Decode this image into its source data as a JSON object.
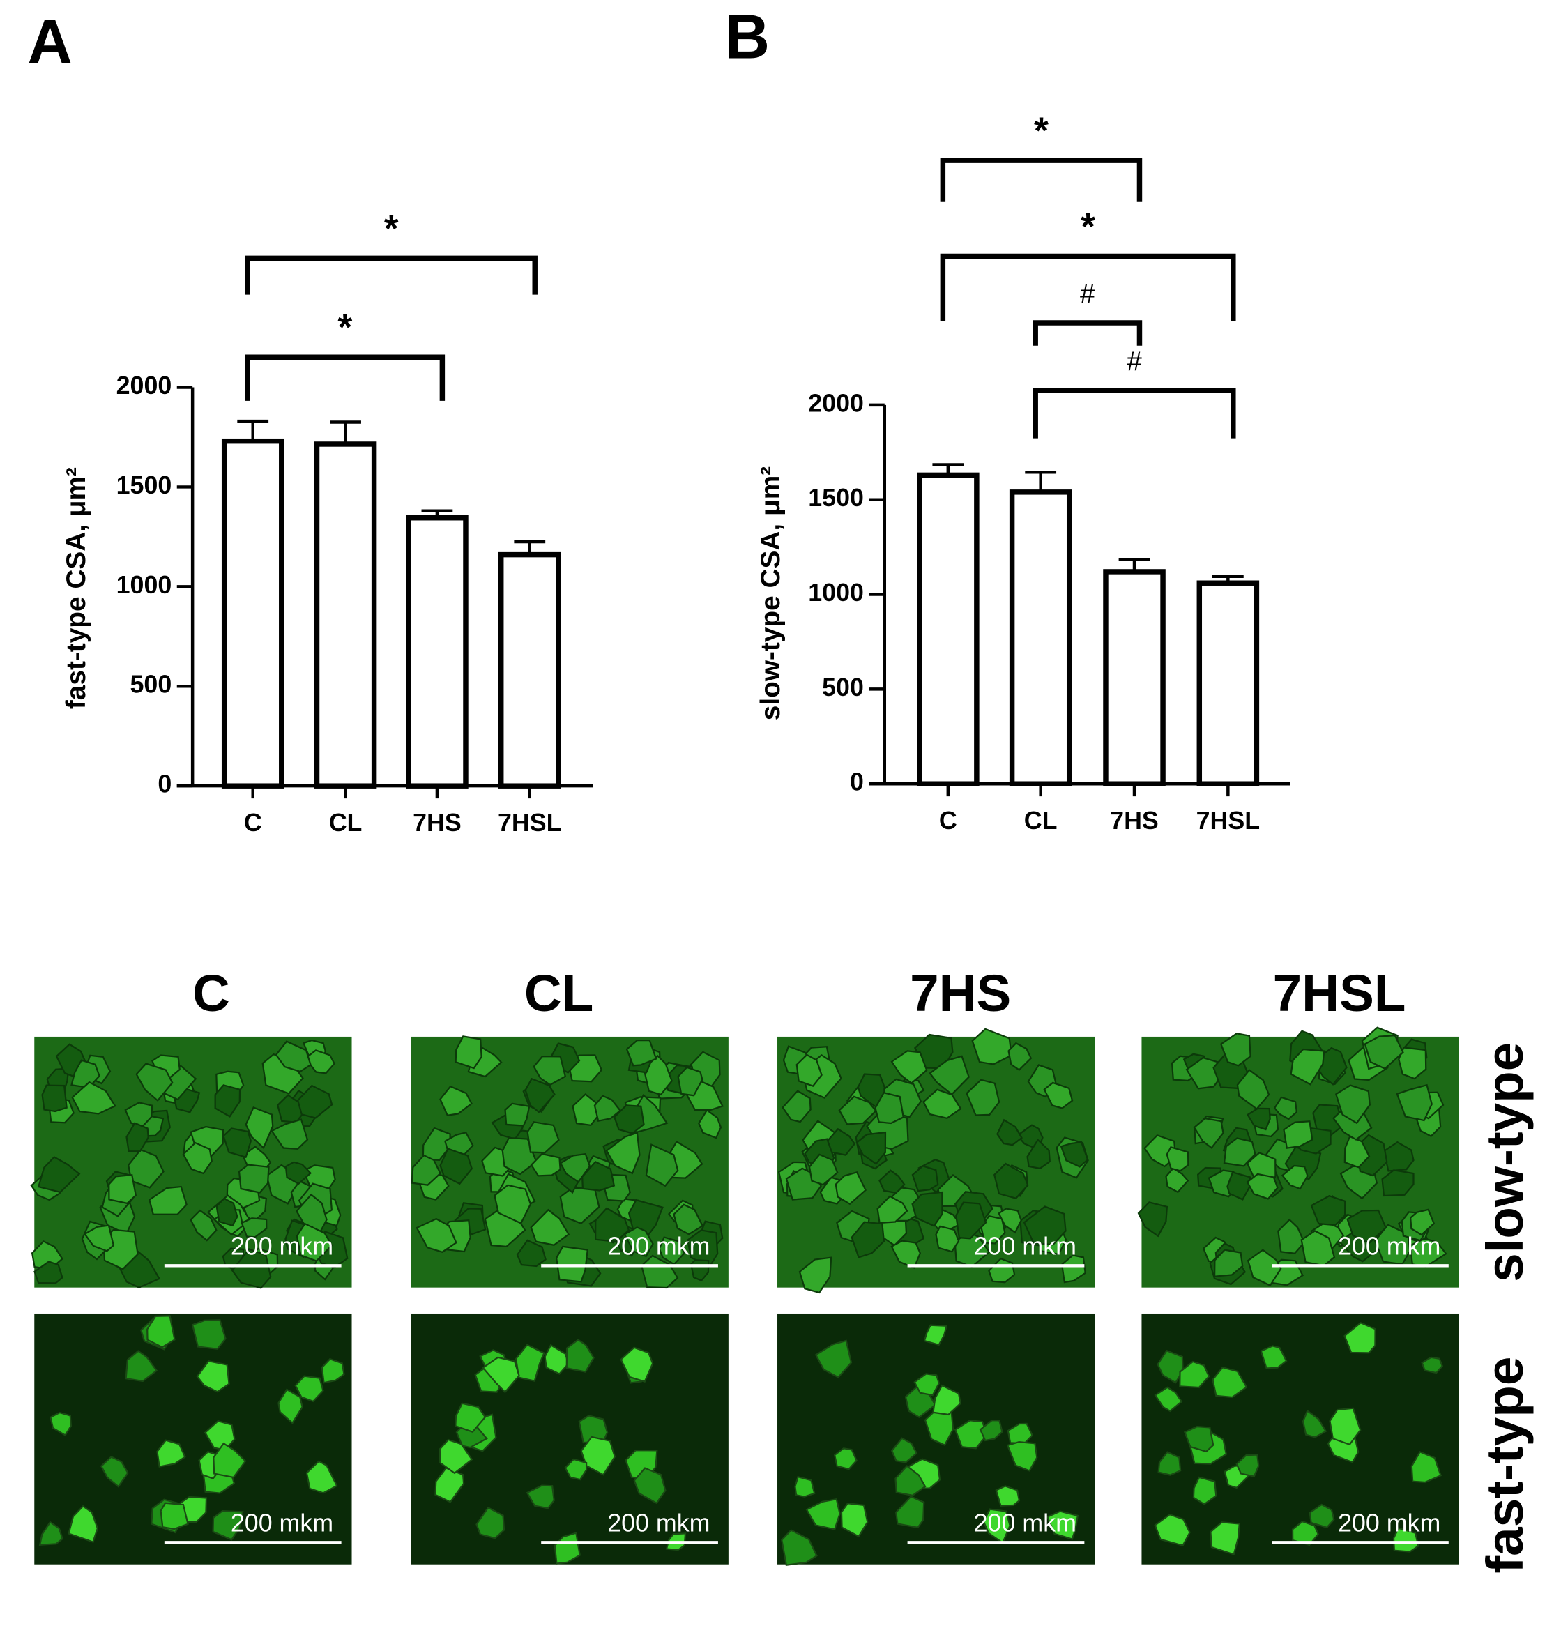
{
  "chart_data": [
    {
      "type": "bar",
      "panel_label": "A",
      "y_label": "fast-type CSA, μm²",
      "categories": [
        "C",
        "CL",
        "7HS",
        "7HSL"
      ],
      "values": [
        1730,
        1715,
        1345,
        1160
      ],
      "errors": [
        100,
        110,
        35,
        65
      ],
      "color": "#ffffff",
      "ylim": [
        0,
        2000
      ],
      "yticks": [
        0,
        500,
        1000,
        1500,
        2000
      ],
      "annotations": [
        {
          "text": "*",
          "between": [
            "C",
            "7HSL"
          ]
        },
        {
          "text": "*",
          "between": [
            "C",
            "7HS"
          ]
        }
      ]
    },
    {
      "type": "bar",
      "panel_label": "B",
      "y_label": "slow-type CSA, μm²",
      "categories": [
        "C",
        "CL",
        "7HS",
        "7HSL"
      ],
      "values": [
        1630,
        1540,
        1120,
        1060
      ],
      "errors": [
        55,
        105,
        65,
        35
      ],
      "color": "#ffffff",
      "ylim": [
        0,
        2000
      ],
      "yticks": [
        0,
        500,
        1000,
        1500,
        2000
      ],
      "annotations": [
        {
          "text": "*",
          "between": [
            "C",
            "7HS"
          ]
        },
        {
          "text": "*",
          "between": [
            "C",
            "7HSL"
          ]
        },
        {
          "text": "#",
          "between": [
            "CL",
            "7HS"
          ]
        },
        {
          "text": "#",
          "between": [
            "CL",
            "7HSL"
          ]
        }
      ]
    }
  ],
  "micrographs": {
    "columns": [
      "C",
      "CL",
      "7HS",
      "7HSL"
    ],
    "rows": [
      "slow-type",
      "fast-type"
    ],
    "scale_bar": "200 mkm"
  }
}
